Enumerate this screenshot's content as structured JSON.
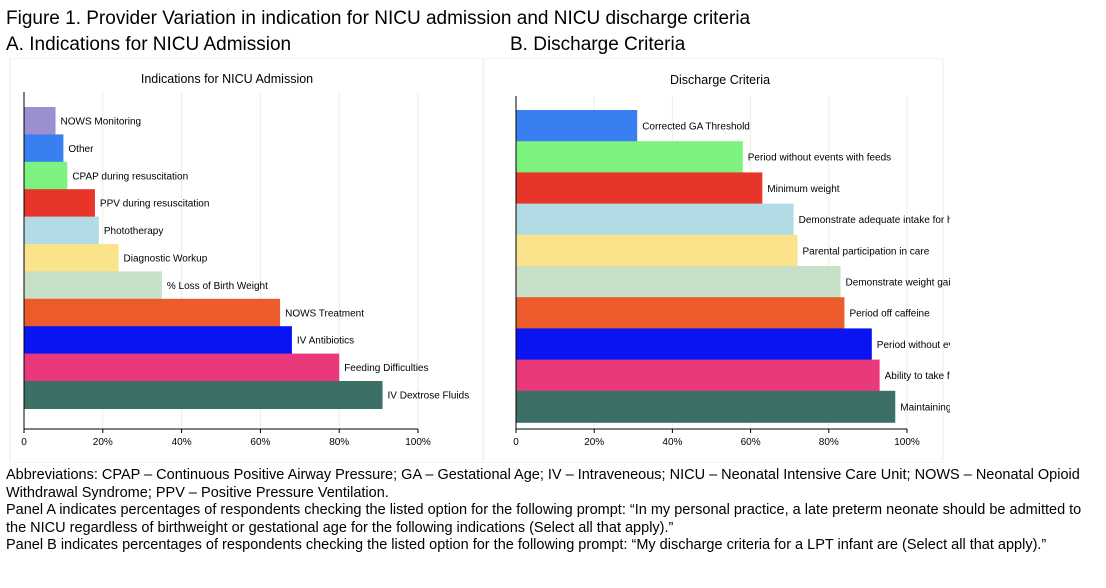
{
  "figure": {
    "title": "Figure 1. Provider Variation in indication for NICU admission and NICU discharge criteria",
    "panel_a_label": "A. Indications for NICU Admission",
    "panel_b_label": "B. Discharge Criteria"
  },
  "chart_data": [
    {
      "type": "bar",
      "orientation": "horizontal",
      "title": "Indications for NICU Admission",
      "xlim": [
        0,
        100
      ],
      "xticks": [
        "0",
        "20%",
        "40%",
        "60%",
        "80%",
        "100%"
      ],
      "grid": true,
      "categories": [
        "NOWS Monitoring",
        "Other",
        "CPAP during resuscitation",
        "PPV during resuscitation",
        "Phototherapy",
        "Diagnostic Workup",
        "% Loss of Birth Weight",
        "NOWS Treatment",
        "IV Antibiotics",
        "Feeding Difficulties",
        "IV Dextrose Fluids"
      ],
      "values": [
        8,
        10,
        11,
        18,
        19,
        24,
        35,
        65,
        68,
        80,
        91
      ],
      "colors": [
        "#9b8fd0",
        "#3a7ff2",
        "#7ef27f",
        "#e8352a",
        "#b3dbe6",
        "#fae38a",
        "#c8dfc8",
        "#ec5b2c",
        "#0a14f0",
        "#e9397b",
        "#3c6f66"
      ]
    },
    {
      "type": "bar",
      "orientation": "horizontal",
      "title": "Discharge Criteria",
      "xlim": [
        0,
        100
      ],
      "xticks": [
        "0",
        "20%",
        "40%",
        "60%",
        "80%",
        "100%"
      ],
      "grid": true,
      "categories": [
        "Corrected GA Threshold",
        "Period without events with feeds",
        "Minimum weight",
        "Demonstrate adequate intake for hydration",
        "Parental participation in care",
        "Demonstrate weight gain",
        "Period off caffeine",
        "Period without events without feeds",
        "Ability to take feeds by mouth",
        "Maintaining temperature"
      ],
      "values": [
        31,
        58,
        63,
        71,
        72,
        83,
        84,
        91,
        93,
        97
      ],
      "colors": [
        "#3a7ff2",
        "#7ef27f",
        "#e8352a",
        "#b3dbe6",
        "#fae38a",
        "#c8dfc8",
        "#ec5b2c",
        "#0a14f0",
        "#e9397b",
        "#3c6f66"
      ]
    }
  ],
  "notes": {
    "abbreviations": "Abbreviations: CPAP – Continuous Positive Airway Pressure; GA – Gestational Age; IV – Intraveneous; NICU – Neonatal Intensive Care Unit; NOWS – Neonatal Opioid Withdrawal Syndrome; PPV – Positive Pressure Ventilation.",
    "panel_a": "Panel A indicates percentages of respondents checking the listed option for the following prompt: “In my personal practice, a late preterm neonate should be admitted to the NICU regardless of birthweight or gestational age for the following indications (Select all that apply).”",
    "panel_b": "Panel B indicates percentages of respondents checking the listed option for the following prompt: “My discharge criteria for a LPT infant are (Select all that apply).”"
  }
}
